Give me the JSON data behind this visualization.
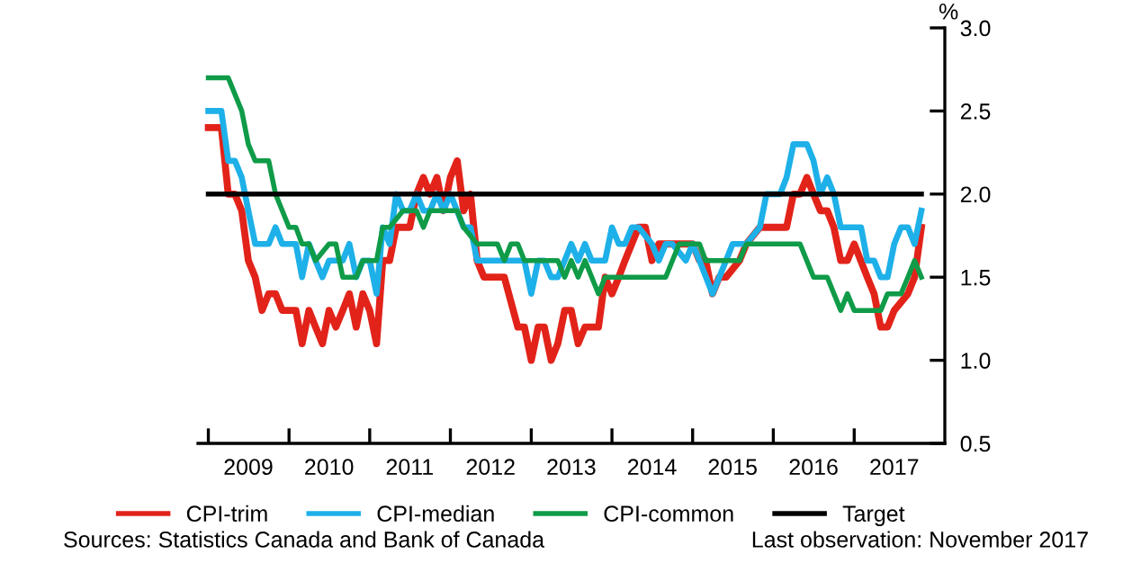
{
  "chart_data": {
    "type": "line",
    "ylabel": "%",
    "legend": "bottom",
    "grid": false,
    "marker": "none",
    "line_style": "solid",
    "xlim": [
      "2008-11-15",
      "2018-02-15"
    ],
    "xticks": [
      {
        "value": "2009-01",
        "label": null
      },
      {
        "value": "2009-07",
        "label": "2009"
      },
      {
        "value": "2010-01",
        "label": null
      },
      {
        "value": "2010-07",
        "label": "2010"
      },
      {
        "value": "2011-01",
        "label": null
      },
      {
        "value": "2011-07",
        "label": "2011"
      },
      {
        "value": "2012-01",
        "label": null
      },
      {
        "value": "2012-07",
        "label": "2012"
      },
      {
        "value": "2013-01",
        "label": null
      },
      {
        "value": "2013-07",
        "label": "2013"
      },
      {
        "value": "2014-01",
        "label": null
      },
      {
        "value": "2014-07",
        "label": "2014"
      },
      {
        "value": "2015-01",
        "label": null
      },
      {
        "value": "2015-07",
        "label": "2015"
      },
      {
        "value": "2016-01",
        "label": null
      },
      {
        "value": "2016-07",
        "label": "2016"
      },
      {
        "value": "2017-01",
        "label": null
      },
      {
        "value": "2017-07",
        "label": "2017"
      }
    ],
    "ylim": [
      0.5,
      3.0
    ],
    "yticks": [
      {
        "value": 0.5,
        "label": "0.5"
      },
      {
        "value": 1,
        "label": "1.0"
      },
      {
        "value": 1.5,
        "label": "1.5"
      },
      {
        "value": 2,
        "label": "2.0"
      },
      {
        "value": 2.5,
        "label": "2.5"
      },
      {
        "value": 3,
        "label": "3.0"
      }
    ],
    "series": [
      {
        "name": "CPI-trim",
        "color": "#e2231a",
        "x": [
          "2009-01",
          "2009-03",
          "2009-04",
          "2009-05",
          "2009-06",
          "2009-07",
          "2009-08",
          "2009-09",
          "2009-10",
          "2009-11",
          "2009-12",
          "2010-02",
          "2010-03",
          "2010-04",
          "2010-05",
          "2010-06",
          "2010-07",
          "2010-08",
          "2010-09",
          "2010-10",
          "2010-11",
          "2010-12",
          "2011-01",
          "2011-02",
          "2011-03",
          "2011-04",
          "2011-05",
          "2011-07",
          "2011-08",
          "2011-09",
          "2011-10",
          "2011-11",
          "2011-12",
          "2012-01",
          "2012-02",
          "2012-03",
          "2012-04",
          "2012-05",
          "2012-06",
          "2012-09",
          "2012-11",
          "2012-12",
          "2013-01",
          "2013-02",
          "2013-03",
          "2013-04",
          "2013-05",
          "2013-06",
          "2013-07",
          "2013-08",
          "2013-09",
          "2013-11",
          "2013-12",
          "2014-01",
          "2014-02",
          "2014-03",
          "2014-05",
          "2014-06",
          "2014-07",
          "2014-08",
          "2015-01",
          "2015-02",
          "2015-03",
          "2015-04",
          "2015-05",
          "2015-06",
          "2015-08",
          "2015-09",
          "2015-11",
          "2016-03",
          "2016-04",
          "2016-05",
          "2016-06",
          "2016-07",
          "2016-08",
          "2016-09",
          "2016-10",
          "2016-11",
          "2016-12",
          "2017-01",
          "2017-03",
          "2017-04",
          "2017-05",
          "2017-06",
          "2017-07",
          "2017-09",
          "2017-10",
          "2017-11"
        ],
        "values": [
          2.4,
          2.4,
          2.0,
          2.0,
          1.9,
          1.6,
          1.5,
          1.3,
          1.4,
          1.4,
          1.3,
          1.3,
          1.1,
          1.3,
          1.2,
          1.1,
          1.3,
          1.2,
          1.3,
          1.4,
          1.2,
          1.4,
          1.3,
          1.1,
          1.6,
          1.6,
          1.8,
          1.8,
          2.0,
          2.1,
          2.0,
          2.1,
          1.9,
          2.1,
          2.2,
          1.9,
          2.0,
          1.6,
          1.5,
          1.5,
          1.2,
          1.2,
          1.0,
          1.2,
          1.2,
          1.0,
          1.1,
          1.3,
          1.3,
          1.1,
          1.2,
          1.2,
          1.5,
          1.4,
          1.5,
          1.6,
          1.8,
          1.8,
          1.6,
          1.7,
          1.7,
          1.6,
          1.6,
          1.4,
          1.5,
          1.5,
          1.6,
          1.7,
          1.8,
          1.8,
          2.0,
          2.0,
          2.1,
          2.0,
          1.9,
          1.9,
          1.8,
          1.6,
          1.6,
          1.7,
          1.5,
          1.4,
          1.2,
          1.2,
          1.3,
          1.4,
          1.5,
          1.8
        ]
      },
      {
        "name": "CPI-median",
        "color": "#1eb0e8",
        "x": [
          "2009-01",
          "2009-03",
          "2009-04",
          "2009-05",
          "2009-06",
          "2009-07",
          "2009-08",
          "2009-10",
          "2009-11",
          "2009-12",
          "2010-02",
          "2010-03",
          "2010-04",
          "2010-05",
          "2010-06",
          "2010-07",
          "2010-09",
          "2010-10",
          "2010-11",
          "2010-12",
          "2011-01",
          "2011-02",
          "2011-03",
          "2011-04",
          "2011-05",
          "2011-06",
          "2011-07",
          "2011-08",
          "2011-09",
          "2011-10",
          "2011-11",
          "2011-12",
          "2012-01",
          "2012-03",
          "2012-04",
          "2012-05",
          "2012-12",
          "2013-01",
          "2013-02",
          "2013-03",
          "2013-04",
          "2013-05",
          "2013-06",
          "2013-07",
          "2013-08",
          "2013-09",
          "2013-10",
          "2013-12",
          "2014-01",
          "2014-02",
          "2014-03",
          "2014-04",
          "2014-05",
          "2014-07",
          "2014-08",
          "2014-09",
          "2014-10",
          "2014-12",
          "2015-01",
          "2015-02",
          "2015-04",
          "2015-06",
          "2015-07",
          "2015-09",
          "2015-11",
          "2015-12",
          "2016-02",
          "2016-03",
          "2016-04",
          "2016-06",
          "2016-07",
          "2016-08",
          "2016-09",
          "2016-10",
          "2016-11",
          "2017-02",
          "2017-03",
          "2017-04",
          "2017-05",
          "2017-06",
          "2017-07",
          "2017-08",
          "2017-09",
          "2017-10",
          "2017-11"
        ],
        "values": [
          2.5,
          2.5,
          2.2,
          2.2,
          2.1,
          1.9,
          1.7,
          1.7,
          1.8,
          1.7,
          1.7,
          1.5,
          1.7,
          1.6,
          1.5,
          1.6,
          1.6,
          1.7,
          1.5,
          1.6,
          1.6,
          1.4,
          1.8,
          1.7,
          2.0,
          1.9,
          1.9,
          2.0,
          1.9,
          1.9,
          2.0,
          1.9,
          2.0,
          1.8,
          1.8,
          1.6,
          1.6,
          1.4,
          1.6,
          1.6,
          1.5,
          1.5,
          1.6,
          1.7,
          1.6,
          1.7,
          1.6,
          1.6,
          1.8,
          1.7,
          1.7,
          1.8,
          1.8,
          1.7,
          1.6,
          1.7,
          1.7,
          1.6,
          1.7,
          1.6,
          1.4,
          1.6,
          1.7,
          1.7,
          1.8,
          2.0,
          2.0,
          2.1,
          2.3,
          2.3,
          2.2,
          2.0,
          2.1,
          2.0,
          1.8,
          1.8,
          1.6,
          1.6,
          1.5,
          1.5,
          1.7,
          1.8,
          1.8,
          1.7,
          1.9
        ]
      },
      {
        "name": "CPI-common",
        "color": "#0f9b48",
        "x": [
          "2009-01",
          "2009-04",
          "2009-06",
          "2009-07",
          "2009-08",
          "2009-10",
          "2009-11",
          "2010-01",
          "2010-02",
          "2010-03",
          "2010-04",
          "2010-05",
          "2010-07",
          "2010-08",
          "2010-09",
          "2010-11",
          "2010-12",
          "2011-02",
          "2011-03",
          "2011-04",
          "2011-06",
          "2011-08",
          "2011-09",
          "2011-10",
          "2011-12",
          "2012-02",
          "2012-03",
          "2012-05",
          "2012-08",
          "2012-09",
          "2012-10",
          "2012-11",
          "2012-12",
          "2013-05",
          "2013-06",
          "2013-07",
          "2013-08",
          "2013-09",
          "2013-11",
          "2013-12",
          "2014-09",
          "2014-11",
          "2015-02",
          "2015-03",
          "2015-08",
          "2015-09",
          "2016-05",
          "2016-07",
          "2016-09",
          "2016-11",
          "2016-12",
          "2017-01",
          "2017-05",
          "2017-06",
          "2017-08",
          "2017-09",
          "2017-10",
          "2017-11"
        ],
        "values": [
          2.7,
          2.7,
          2.5,
          2.3,
          2.2,
          2.2,
          2.0,
          1.8,
          1.8,
          1.7,
          1.7,
          1.6,
          1.7,
          1.7,
          1.5,
          1.5,
          1.6,
          1.6,
          1.8,
          1.8,
          1.9,
          1.9,
          1.8,
          1.9,
          1.9,
          1.9,
          1.8,
          1.7,
          1.7,
          1.6,
          1.7,
          1.7,
          1.6,
          1.6,
          1.5,
          1.6,
          1.5,
          1.6,
          1.4,
          1.5,
          1.5,
          1.7,
          1.7,
          1.6,
          1.6,
          1.7,
          1.7,
          1.5,
          1.5,
          1.3,
          1.4,
          1.3,
          1.3,
          1.4,
          1.4,
          1.5,
          1.6,
          1.5
        ]
      },
      {
        "name": "Target",
        "color": "#000000",
        "x": [
          "2009-01",
          "2017-11"
        ],
        "values": [
          2.0,
          2.0
        ]
      }
    ],
    "annotations": [
      "Sources: Statistics Canada and Bank of Canada",
      "Last observation: November 2017"
    ]
  }
}
